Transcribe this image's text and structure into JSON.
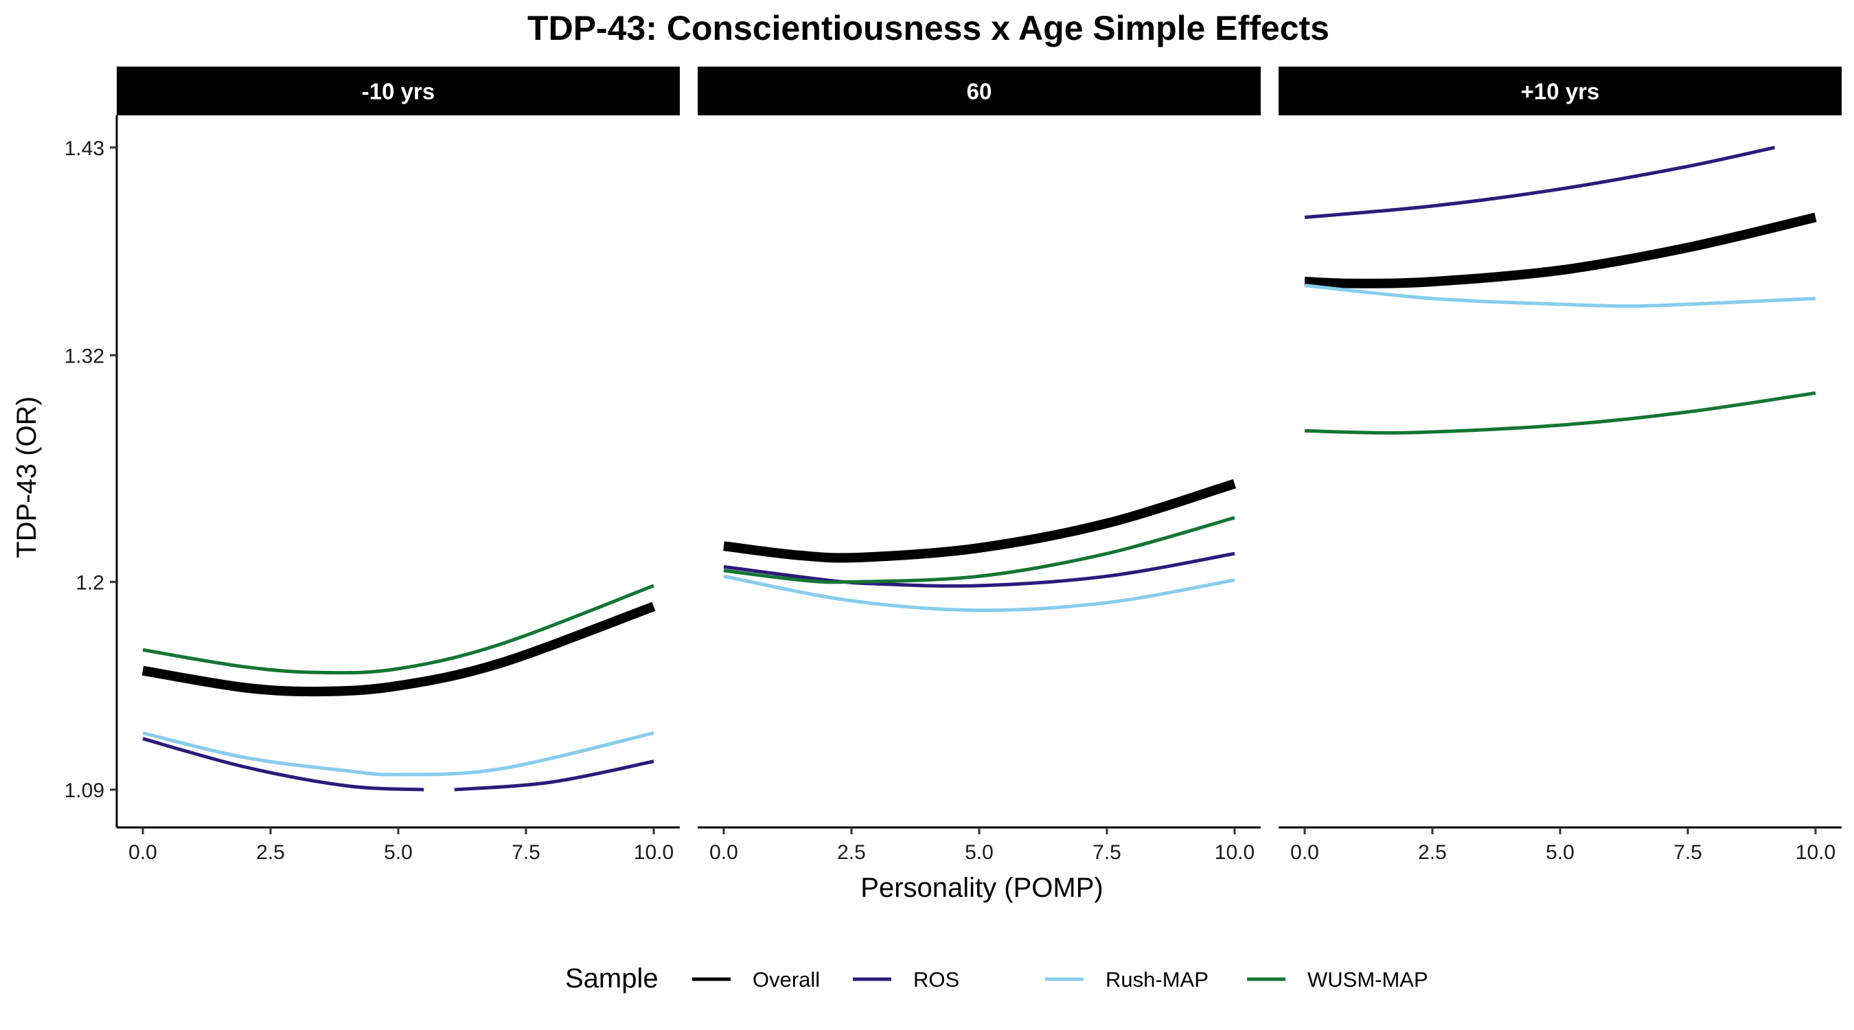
{
  "chart_data": {
    "type": "line",
    "title": "TDP-43: Conscientiousness x Age Simple Effects",
    "xlabel": "Personality (POMP)",
    "ylabel": "TDP-43 (OR)",
    "xlim": [
      0,
      10
    ],
    "ylim": [
      1.07,
      1.447
    ],
    "x_ticks": [
      "0.0",
      "2.5",
      "5.0",
      "7.5",
      "10.0"
    ],
    "x_tick_values": [
      0,
      2.5,
      5,
      7.5,
      10
    ],
    "y_ticks": [
      "1.09",
      "1.2",
      "1.32",
      "1.43"
    ],
    "y_tick_values": [
      1.09,
      1.2,
      1.32,
      1.43
    ],
    "grid": false,
    "legend": {
      "title": "Sample",
      "position": "bottom"
    },
    "panels": [
      {
        "label": "-10 yrs",
        "series": [
          {
            "name": "Overall",
            "segments": [
              {
                "x": [
                  0,
                  2,
                  3.5,
                  5,
                  7,
                  10
                ],
                "y": [
                  1.153,
                  1.144,
                  1.142,
                  1.145,
                  1.157,
                  1.187
                ]
              }
            ]
          },
          {
            "name": "ROS",
            "segments": [
              {
                "x": [
                  0,
                  2,
                  4,
                  5.5
                ],
                "y": [
                  1.117,
                  1.102,
                  1.092,
                  1.09
                ]
              },
              {
                "x": [
                  6.1,
                  8,
                  10
                ],
                "y": [
                  1.09,
                  1.094,
                  1.105
                ]
              }
            ]
          },
          {
            "name": "Rush-MAP",
            "segments": [
              {
                "x": [
                  0,
                  2,
                  4,
                  5,
                  7,
                  10
                ],
                "y": [
                  1.12,
                  1.107,
                  1.1,
                  1.098,
                  1.101,
                  1.12
                ]
              }
            ]
          },
          {
            "name": "WUSM-MAP",
            "segments": [
              {
                "x": [
                  0,
                  2,
                  3.5,
                  5,
                  7,
                  10
                ],
                "y": [
                  1.164,
                  1.155,
                  1.152,
                  1.154,
                  1.167,
                  1.198
                ]
              }
            ]
          }
        ]
      },
      {
        "label": "60",
        "series": [
          {
            "name": "Overall",
            "segments": [
              {
                "x": [
                  0,
                  1.5,
                  2.7,
                  5,
                  7.5,
                  10
                ],
                "y": [
                  1.219,
                  1.214,
                  1.213,
                  1.218,
                  1.231,
                  1.252
                ]
              }
            ]
          },
          {
            "name": "ROS",
            "segments": [
              {
                "x": [
                  0,
                  2,
                  3,
                  5,
                  7.5,
                  10
                ],
                "y": [
                  1.208,
                  1.201,
                  1.199,
                  1.198,
                  1.203,
                  1.215
                ]
              }
            ]
          },
          {
            "name": "Rush-MAP",
            "segments": [
              {
                "x": [
                  0,
                  2.5,
                  5,
                  7.5,
                  10
                ],
                "y": [
                  1.203,
                  1.19,
                  1.185,
                  1.189,
                  1.201
                ]
              }
            ]
          },
          {
            "name": "WUSM-MAP",
            "segments": [
              {
                "x": [
                  0,
                  1.5,
                  2.5,
                  5,
                  7.5,
                  10
                ],
                "y": [
                  1.206,
                  1.201,
                  1.2,
                  1.203,
                  1.215,
                  1.234
                ]
              }
            ]
          }
        ]
      },
      {
        "label": "+10 yrs",
        "series": [
          {
            "name": "Overall",
            "segments": [
              {
                "x": [
                  0,
                  1,
                  2.5,
                  5,
                  7.5,
                  10
                ],
                "y": [
                  1.359,
                  1.358,
                  1.359,
                  1.365,
                  1.377,
                  1.393
                ]
              }
            ]
          },
          {
            "name": "ROS",
            "segments": [
              {
                "x": [
                  0,
                  2.5,
                  5,
                  7.5,
                  9.2
                ],
                "y": [
                  1.393,
                  1.399,
                  1.408,
                  1.42,
                  1.43
                ]
              }
            ]
          },
          {
            "name": "Rush-MAP",
            "segments": [
              {
                "x": [
                  0,
                  2.5,
                  5,
                  6.3,
                  7.5,
                  10
                ],
                "y": [
                  1.357,
                  1.35,
                  1.347,
                  1.346,
                  1.347,
                  1.35
                ]
              }
            ]
          },
          {
            "name": "WUSM-MAP",
            "segments": [
              {
                "x": [
                  0,
                  2,
                  5,
                  7.5,
                  10
                ],
                "y": [
                  1.28,
                  1.279,
                  1.283,
                  1.29,
                  1.3
                ]
              }
            ]
          }
        ]
      }
    ],
    "series_styles": [
      {
        "name": "Overall",
        "color": "#000000",
        "width": "thick"
      },
      {
        "name": "ROS",
        "color": "#2c1b7b",
        "width": "thin"
      },
      {
        "name": "Rush-MAP",
        "color": "#87ccec",
        "width": "thin"
      },
      {
        "name": "WUSM-MAP",
        "color": "#137534",
        "width": "thin"
      }
    ]
  }
}
